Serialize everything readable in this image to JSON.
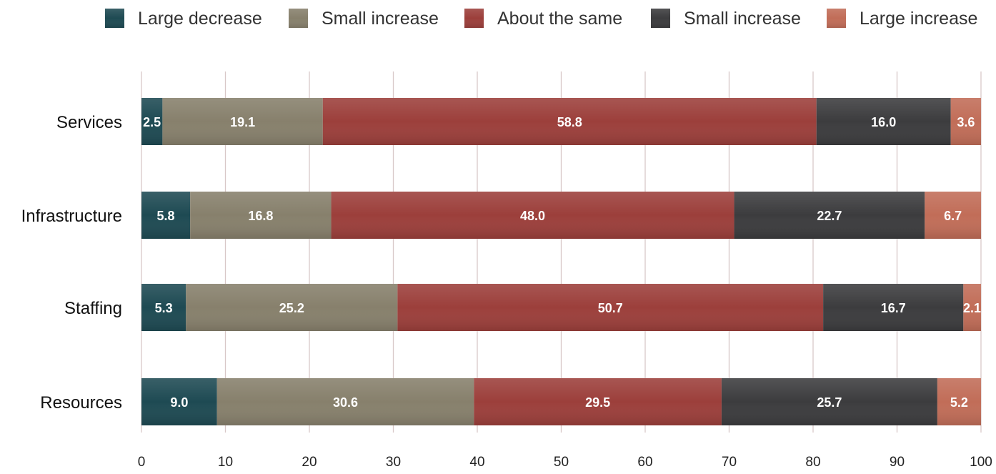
{
  "chart_data": {
    "type": "bar",
    "orientation": "horizontal",
    "stacked": true,
    "categories": [
      "Services",
      "Infrastructure",
      "Staffing",
      "Resources"
    ],
    "series": [
      {
        "name": "Large decrease",
        "color": "#1e4a53",
        "values": [
          2.5,
          5.8,
          5.3,
          9.0
        ]
      },
      {
        "name": "Small increase",
        "color": "#87806c",
        "values": [
          19.1,
          16.8,
          25.2,
          30.6
        ]
      },
      {
        "name": "About the same",
        "color": "#9c3f3b",
        "values": [
          58.8,
          48.0,
          50.7,
          29.5
        ]
      },
      {
        "name": "Small increase",
        "color": "#3c3c3e",
        "values": [
          16.0,
          22.7,
          16.7,
          25.7
        ]
      },
      {
        "name": "Large increase",
        "color": "#c16d58",
        "values": [
          3.6,
          6.7,
          2.1,
          5.2
        ]
      }
    ],
    "xlim": [
      0,
      100
    ],
    "xticks": [
      "0",
      "10",
      "20",
      "30",
      "40",
      "50",
      "60",
      "70",
      "80",
      "90",
      "100"
    ],
    "grid": true,
    "legend": "top"
  }
}
